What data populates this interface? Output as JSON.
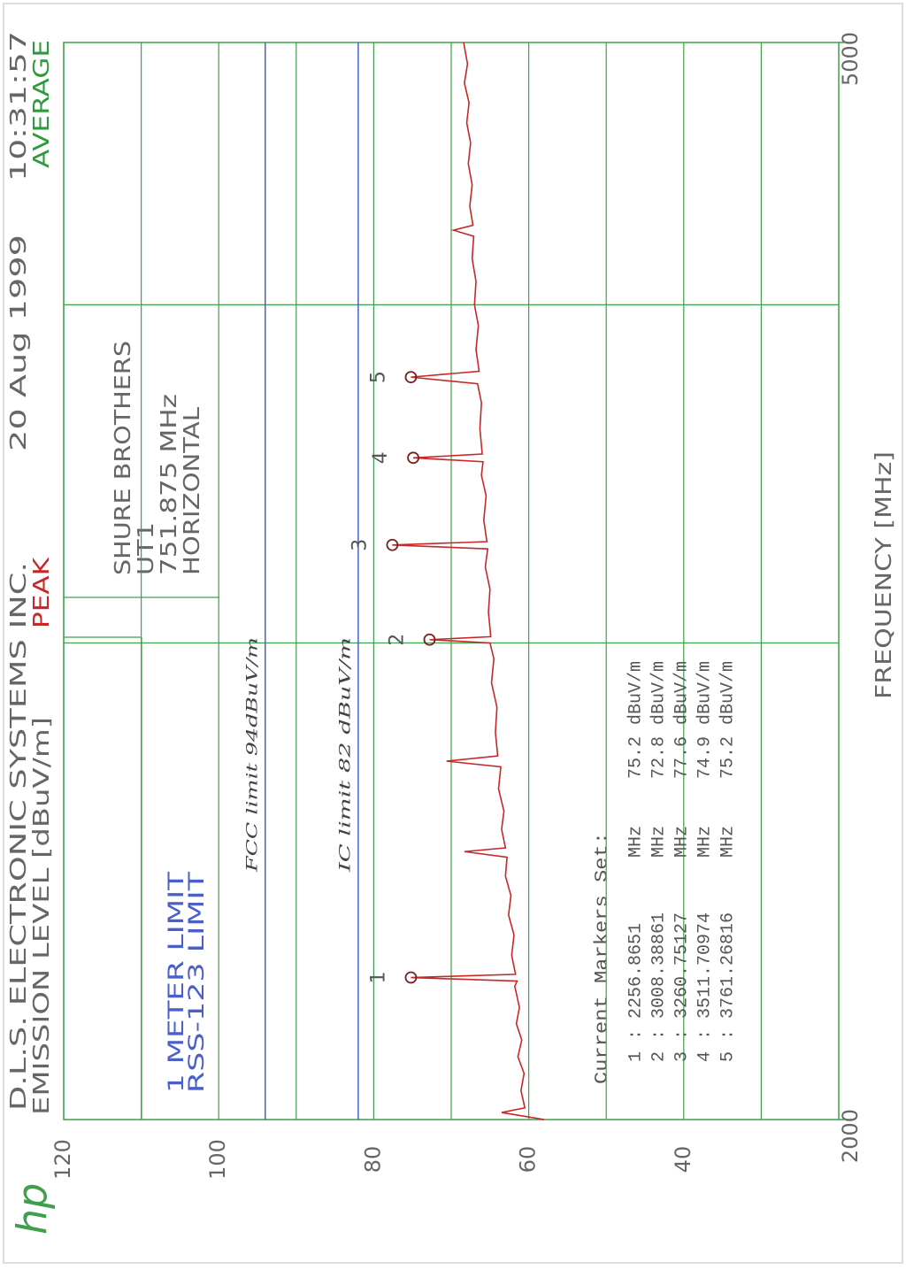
{
  "chart_data": {
    "type": "line",
    "logo": "hp",
    "title": "D.L.S. ELECTRONIC SYSTEMS INC.",
    "date": "20 Aug 1999",
    "time": "10:31:57",
    "y_label": "EMISSION LEVEL [dBuV/m]",
    "x_label": "FREQUENCY [MHz]",
    "average": {
      "name": "AVERAGE",
      "color": "#2e9a3c"
    },
    "info": [
      "SHURE BROTHERS",
      "UT1",
      "751.875 MHz",
      "HORIZONTAL"
    ],
    "xscale": "log",
    "xlim": [
      2000,
      5000
    ],
    "xticks": [
      2000,
      5000
    ],
    "xgrid": [
      3000,
      4000
    ],
    "ylim": [
      20,
      120
    ],
    "yticks": [
      40,
      60,
      80,
      100,
      120
    ],
    "ygrid": [
      30,
      50,
      70,
      90,
      110
    ],
    "grid": true,
    "grid_color": "#3f9f4a",
    "series": [
      {
        "name": "PEAK",
        "color": "#c62828",
        "x": [
          2000,
          2005,
          2012,
          2020,
          2050,
          2080,
          2110,
          2140,
          2170,
          2200,
          2240,
          2250,
          2256.8651,
          2263,
          2300,
          2340,
          2380,
          2420,
          2460,
          2500,
          2512,
          2520,
          2560,
          2600,
          2650,
          2700,
          2713,
          2725,
          2780,
          2840,
          2900,
          2960,
          3000,
          3008.38861,
          3016,
          3080,
          3140,
          3200,
          3250,
          3260.75127,
          3270,
          3330,
          3400,
          3460,
          3500,
          3511.70974,
          3523,
          3600,
          3680,
          3740,
          3761.26816,
          3780,
          3850,
          3930,
          4000,
          4080,
          4160,
          4240,
          4262,
          4280,
          4350,
          4430,
          4510,
          4590,
          4670,
          4750,
          4830,
          4910,
          5000
        ],
        "values": [
          58,
          60.3,
          63.5,
          60.5,
          61,
          60.6,
          61.4,
          60.9,
          61.6,
          61.2,
          61.8,
          61.5,
          75.2,
          61.7,
          62.2,
          61.9,
          62.6,
          62.3,
          63,
          62.8,
          68.3,
          63,
          63.5,
          63.2,
          63.9,
          63.6,
          70.6,
          64,
          64.3,
          64.1,
          64.8,
          64.5,
          65,
          72.8,
          64.9,
          65.2,
          65,
          65.6,
          65.3,
          77.6,
          65.4,
          65.8,
          65.5,
          66.1,
          65.9,
          74.9,
          66,
          66.3,
          66.1,
          66.6,
          75.2,
          66.4,
          66.8,
          66.5,
          67,
          66.8,
          67.3,
          67.1,
          69.7,
          67.2,
          67.6,
          67.3,
          67.8,
          67.5,
          68,
          67.7,
          68.3,
          67.9,
          68.4
        ]
      }
    ],
    "limits": [
      {
        "name": "1 METER LIMIT",
        "note": "FCC limit 94dBuV/m",
        "value": 94,
        "color": "#4a5fc8"
      },
      {
        "name": "RSS-123 LIMIT",
        "note": "IC limit 82 dBuV/m",
        "value": 82,
        "color": "#4a5fc8"
      }
    ],
    "markers": {
      "title": "Current Markers Set:",
      "separator": ":",
      "freq_unit": "MHz",
      "level_unit": "dBuV/m",
      "color": "#7a2020",
      "items": [
        {
          "label": "1",
          "freq": 2256.8651,
          "level": 75.2
        },
        {
          "label": "2",
          "freq": 3008.38861,
          "level": 72.8
        },
        {
          "label": "3",
          "freq": 3260.75127,
          "level": 77.6
        },
        {
          "label": "4",
          "freq": 3511.70974,
          "level": 74.9
        },
        {
          "label": "5",
          "freq": 3761.26816,
          "level": 75.2
        }
      ]
    }
  }
}
